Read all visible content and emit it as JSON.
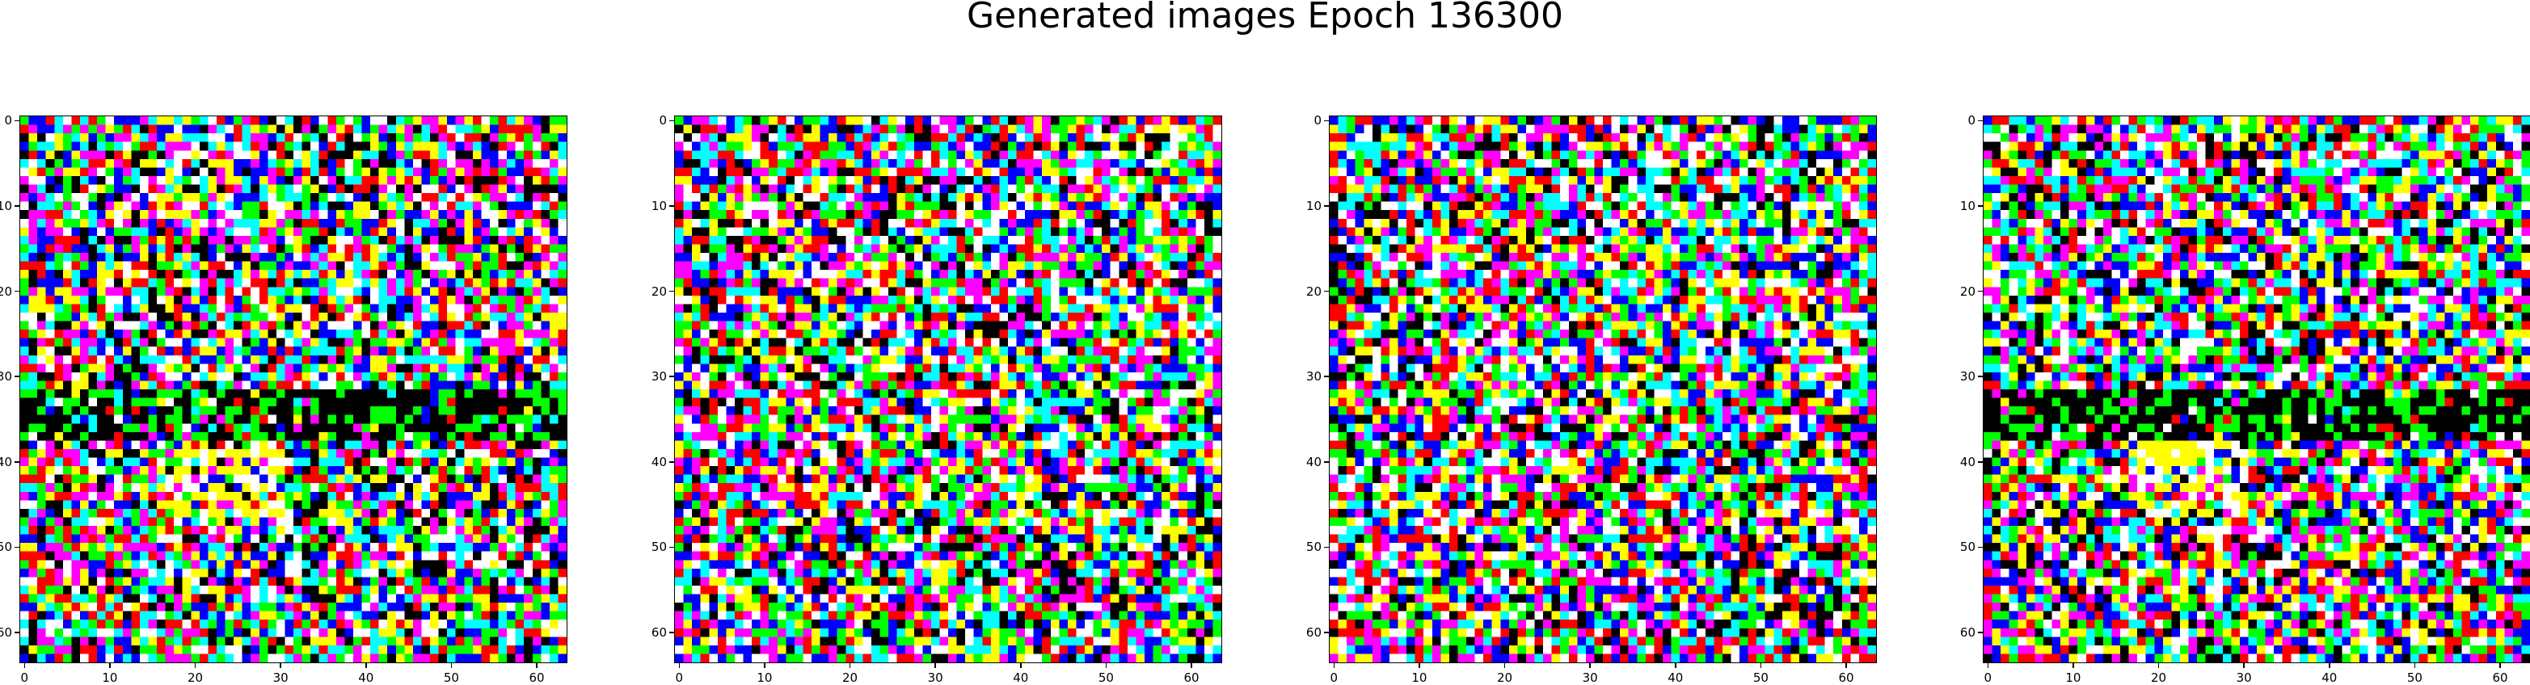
{
  "figure": {
    "title": "Generated images Epoch 136300"
  },
  "chart_data": [
    {
      "type": "heatmap",
      "panel": "image-1",
      "grid_size": [
        64,
        64
      ],
      "xlim": [
        -0.5,
        63.5
      ],
      "ylim": [
        63.5,
        -0.5
      ],
      "xticks": [
        0,
        10,
        20,
        30,
        40,
        50,
        60
      ],
      "yticks": [
        0,
        10,
        20,
        30,
        40,
        50,
        60
      ],
      "xtick_labels": [
        "0",
        "10",
        "20",
        "30",
        "40",
        "50",
        "60"
      ],
      "ytick_labels": [
        "0",
        "10",
        "20",
        "30",
        "40",
        "50",
        "60"
      ],
      "palette": [
        "#ff0000",
        "#00ff00",
        "#0000ff",
        "#ffff00",
        "#ff00ff",
        "#00ffff",
        "#ffffff",
        "#000000"
      ],
      "seed": 11,
      "dark_band_rows": [
        32,
        37
      ],
      "yellow_zone": {
        "rows": [
          38,
          46
        ],
        "cols": [
          18,
          30
        ]
      }
    },
    {
      "type": "heatmap",
      "panel": "image-2",
      "grid_size": [
        64,
        64
      ],
      "xlim": [
        -0.5,
        63.5
      ],
      "ylim": [
        63.5,
        -0.5
      ],
      "xticks": [
        0,
        10,
        20,
        30,
        40,
        50,
        60
      ],
      "yticks": [
        0,
        10,
        20,
        30,
        40,
        50,
        60
      ],
      "xtick_labels": [
        "0",
        "10",
        "20",
        "30",
        "40",
        "50",
        "60"
      ],
      "ytick_labels": [
        "0",
        "10",
        "20",
        "30",
        "40",
        "50",
        "60"
      ],
      "palette": [
        "#ff0000",
        "#00ff00",
        "#0000ff",
        "#ffff00",
        "#ff00ff",
        "#00ffff",
        "#ffffff",
        "#000000"
      ],
      "seed": 23,
      "dark_band_rows": null,
      "yellow_zone": null
    },
    {
      "type": "heatmap",
      "panel": "image-3",
      "grid_size": [
        64,
        64
      ],
      "xlim": [
        -0.5,
        63.5
      ],
      "ylim": [
        63.5,
        -0.5
      ],
      "xticks": [
        0,
        10,
        20,
        30,
        40,
        50,
        60
      ],
      "yticks": [
        0,
        10,
        20,
        30,
        40,
        50,
        60
      ],
      "xtick_labels": [
        "0",
        "10",
        "20",
        "30",
        "40",
        "50",
        "60"
      ],
      "ytick_labels": [
        "0",
        "10",
        "20",
        "30",
        "40",
        "50",
        "60"
      ],
      "palette": [
        "#ff0000",
        "#00ff00",
        "#0000ff",
        "#ffff00",
        "#ff00ff",
        "#00ffff",
        "#ffffff",
        "#000000"
      ],
      "seed": 37,
      "dark_band_rows": null,
      "yellow_zone": null
    },
    {
      "type": "heatmap",
      "panel": "image-4",
      "grid_size": [
        64,
        64
      ],
      "xlim": [
        -0.5,
        63.5
      ],
      "ylim": [
        63.5,
        -0.5
      ],
      "xticks": [
        0,
        10,
        20,
        30,
        40,
        50,
        60
      ],
      "yticks": [
        0,
        10,
        20,
        30,
        40,
        50,
        60
      ],
      "xtick_labels": [
        "0",
        "10",
        "20",
        "30",
        "40",
        "50",
        "60"
      ],
      "ytick_labels": [
        "0",
        "10",
        "20",
        "30",
        "40",
        "50",
        "60"
      ],
      "palette": [
        "#ff0000",
        "#00ff00",
        "#0000ff",
        "#ffff00",
        "#ff00ff",
        "#00ffff",
        "#ffffff",
        "#000000"
      ],
      "seed": 53,
      "dark_band_rows": [
        32,
        37
      ],
      "yellow_zone": {
        "rows": [
          38,
          46
        ],
        "cols": [
          18,
          30
        ]
      }
    }
  ]
}
